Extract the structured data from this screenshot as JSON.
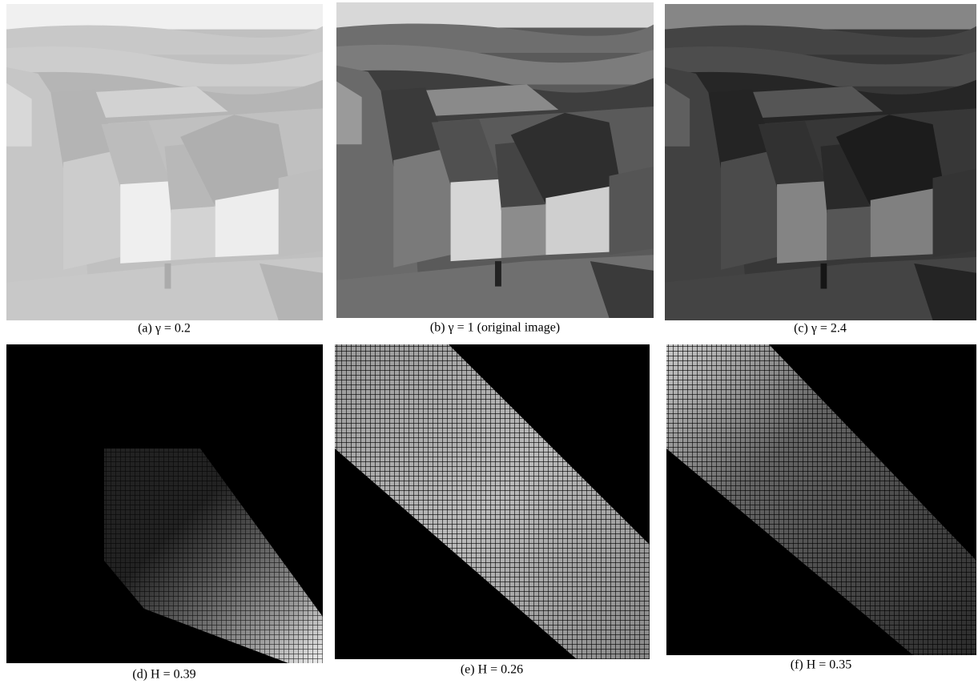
{
  "panels": [
    {
      "caption": "(a) γ = 0.2"
    },
    {
      "caption": "(b) γ = 1 (original image)"
    },
    {
      "caption": "(c) γ = 2.4"
    },
    {
      "caption": "(d) H = 0.39"
    },
    {
      "caption": "(e) H = 0.26"
    },
    {
      "caption": "(f) H = 0.35"
    }
  ]
}
